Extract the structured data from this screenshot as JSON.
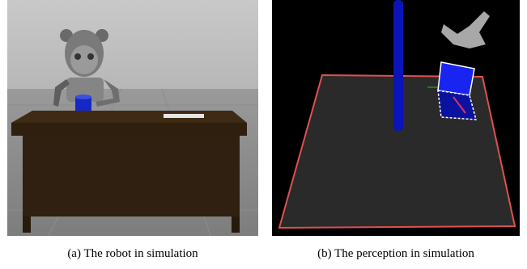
{
  "figure": {
    "panels": [
      {
        "caption": "(a) The robot in simulation"
      },
      {
        "caption": "(b) The perception in simulation"
      }
    ]
  }
}
